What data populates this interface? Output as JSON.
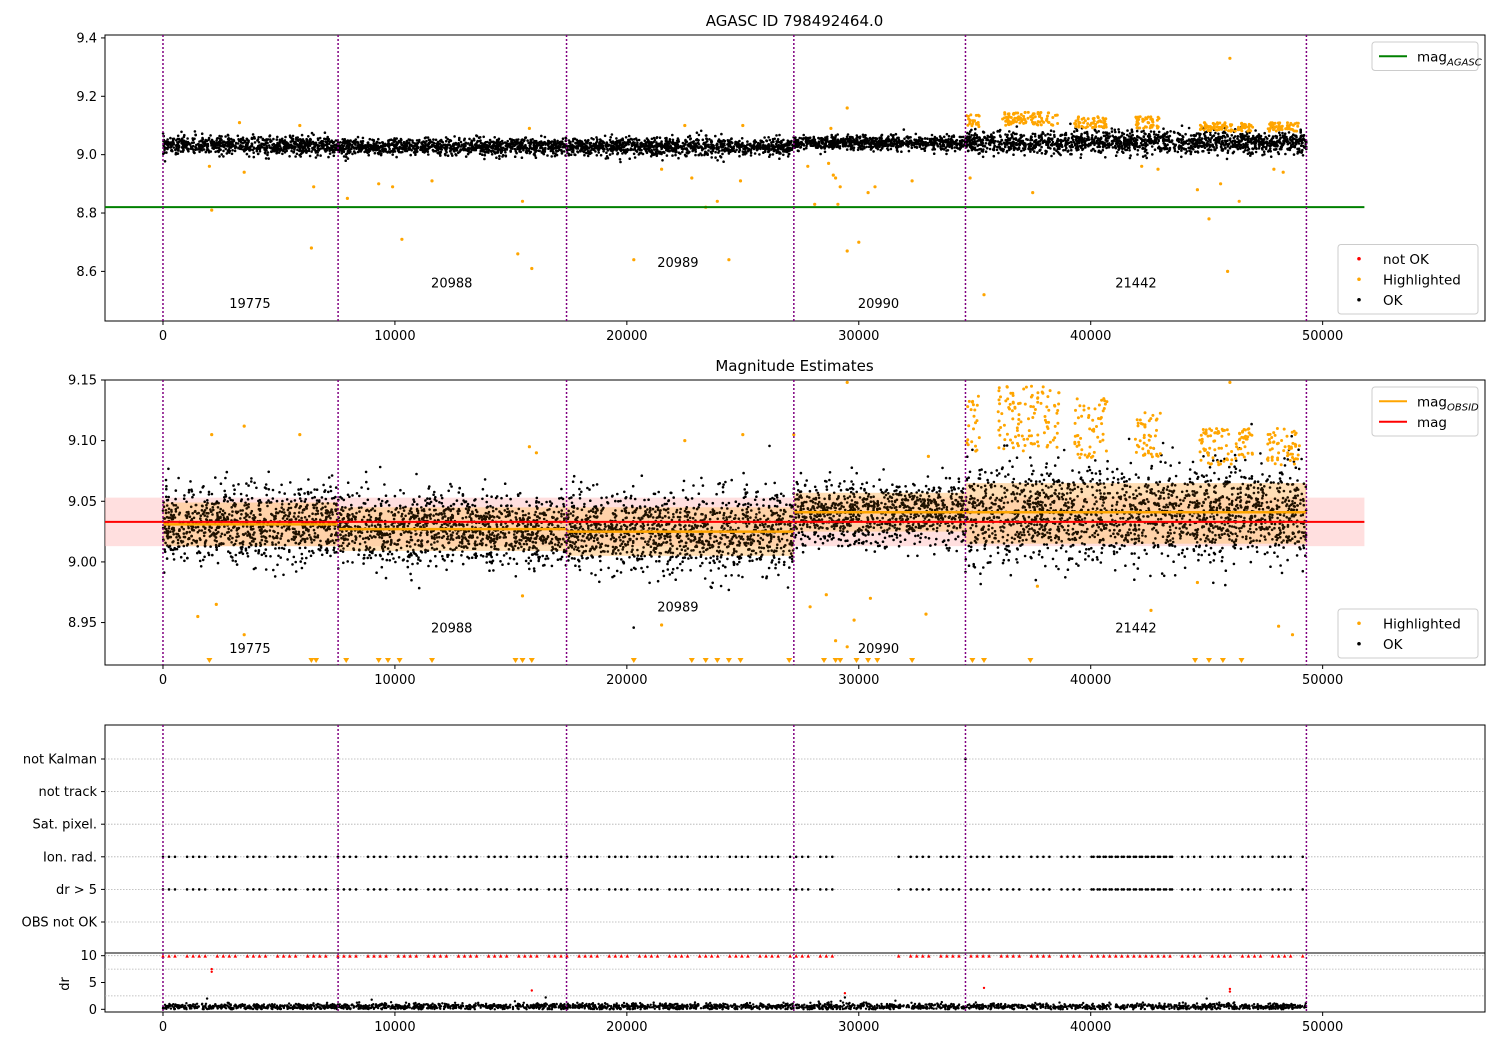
{
  "figure": {
    "title": "AGASC ID 798492464.0",
    "colors": {
      "ok": "#000000",
      "highlighted": "#ffa500",
      "not_ok": "#ff0000",
      "agasc_line": "#008000",
      "mag_line": "#ff0000",
      "obsid_line": "#ffa500",
      "boundary": "#800080",
      "band": "#ffc0c0",
      "grid": "#b0b0b0"
    }
  },
  "chart_data": [
    {
      "id": "top",
      "type": "scatter",
      "title": "",
      "xlabel": "",
      "ylabel": "",
      "xlim": [
        -2500,
        57000
      ],
      "ylim": [
        8.43,
        9.41
      ],
      "x_ticks": [
        0,
        10000,
        20000,
        30000,
        40000,
        50000
      ],
      "y_ticks": [
        8.6,
        8.8,
        9.0,
        9.2,
        9.4
      ],
      "x_tick_labels": [
        "0",
        "10000",
        "20000",
        "30000",
        "40000",
        "50000"
      ],
      "y_tick_labels": [
        "8.6",
        "8.8",
        "9.0",
        "9.2",
        "9.4"
      ],
      "obs_boundaries": [
        0,
        7550,
        17400,
        27200,
        34600,
        49300
      ],
      "obsid_labels": [
        {
          "text": "19775",
          "x": 3750,
          "y": 8.475
        },
        {
          "text": "20988",
          "x": 12450,
          "y": 8.545
        },
        {
          "text": "20989",
          "x": 22200,
          "y": 8.615
        },
        {
          "text": "20990",
          "x": 30850,
          "y": 8.475
        },
        {
          "text": "21442",
          "x": 41950,
          "y": 8.545
        }
      ],
      "segments": [
        {
          "x0": 0,
          "x1": 7550,
          "center": 9.031,
          "spread": 0.028
        },
        {
          "x0": 7550,
          "x1": 17400,
          "center": 9.027,
          "spread": 0.026
        },
        {
          "x0": 17400,
          "x1": 27200,
          "center": 9.027,
          "spread": 0.028
        },
        {
          "x0": 27200,
          "x1": 34600,
          "center": 9.04,
          "spread": 0.022
        },
        {
          "x0": 34600,
          "x1": 49300,
          "center": 9.042,
          "spread": 0.035
        }
      ],
      "mag_agasc": 8.82,
      "mag_line_xrange": [
        -2500,
        51800
      ],
      "highlighted_outliers": [
        [
          2000,
          8.96
        ],
        [
          3500,
          8.94
        ],
        [
          6400,
          8.68
        ],
        [
          6500,
          8.89
        ],
        [
          7950,
          8.85
        ],
        [
          9300,
          8.9
        ],
        [
          9900,
          8.89
        ],
        [
          10300,
          8.71
        ],
        [
          11600,
          8.91
        ],
        [
          15300,
          8.66
        ],
        [
          15500,
          8.84
        ],
        [
          15900,
          8.61
        ],
        [
          20300,
          8.64
        ],
        [
          21500,
          8.95
        ],
        [
          22800,
          8.92
        ],
        [
          23400,
          8.82
        ],
        [
          23900,
          8.84
        ],
        [
          24400,
          8.64
        ],
        [
          24900,
          8.91
        ],
        [
          27800,
          8.96
        ],
        [
          28100,
          8.83
        ],
        [
          28700,
          8.97
        ],
        [
          28900,
          8.93
        ],
        [
          29000,
          8.92
        ],
        [
          29100,
          8.83
        ],
        [
          29200,
          8.89
        ],
        [
          29500,
          8.67
        ],
        [
          30000,
          8.7
        ],
        [
          30400,
          8.87
        ],
        [
          30700,
          8.89
        ],
        [
          32300,
          8.91
        ],
        [
          34800,
          8.92
        ],
        [
          35400,
          8.52
        ],
        [
          37500,
          8.87
        ],
        [
          42200,
          8.96
        ],
        [
          42900,
          8.95
        ],
        [
          44600,
          8.88
        ],
        [
          45100,
          8.78
        ],
        [
          45600,
          8.9
        ],
        [
          45900,
          8.6
        ],
        [
          46400,
          8.84
        ],
        [
          47900,
          8.95
        ],
        [
          48300,
          8.94
        ],
        [
          2100,
          8.81
        ],
        [
          3300,
          9.11
        ],
        [
          5900,
          9.1
        ],
        [
          15800,
          9.09
        ],
        [
          22500,
          9.1
        ],
        [
          25000,
          9.1
        ],
        [
          28800,
          9.09
        ],
        [
          29500,
          9.16
        ],
        [
          46000,
          9.33
        ]
      ],
      "highlighted_clusters": [
        {
          "x0": 34650,
          "x1": 35200,
          "y0": 9.09,
          "y1": 9.14
        },
        {
          "x0": 36200,
          "x1": 38600,
          "y0": 9.1,
          "y1": 9.145
        },
        {
          "x0": 39300,
          "x1": 40700,
          "y0": 9.09,
          "y1": 9.13
        },
        {
          "x0": 41900,
          "x1": 43000,
          "y0": 9.09,
          "y1": 9.13
        },
        {
          "x0": 44700,
          "x1": 47000,
          "y0": 9.08,
          "y1": 9.11
        },
        {
          "x0": 47600,
          "x1": 49000,
          "y0": 9.08,
          "y1": 9.11
        }
      ],
      "legends": [
        {
          "position": "upper-right",
          "entries": [
            {
              "label": "mag",
              "subscript": "AGASC",
              "kind": "line",
              "color": "#008000"
            }
          ]
        },
        {
          "position": "lower-right",
          "entries": [
            {
              "label": "not OK",
              "kind": "dot",
              "color": "#ff0000"
            },
            {
              "label": "Highlighted",
              "kind": "dot",
              "color": "#ffa500"
            },
            {
              "label": "OK",
              "kind": "dot",
              "color": "#000000"
            }
          ]
        }
      ]
    },
    {
      "id": "middle",
      "type": "scatter",
      "title": "Magnitude Estimates",
      "xlabel": "",
      "ylabel": "",
      "xlim": [
        -2500,
        57000
      ],
      "ylim": [
        8.915,
        9.15
      ],
      "x_ticks": [
        0,
        10000,
        20000,
        30000,
        40000,
        50000
      ],
      "y_ticks": [
        8.95,
        9.0,
        9.05,
        9.1,
        9.15
      ],
      "x_tick_labels": [
        "0",
        "10000",
        "20000",
        "30000",
        "40000",
        "50000"
      ],
      "y_tick_labels": [
        "8.95",
        "9.00",
        "9.05",
        "9.10",
        "9.15"
      ],
      "obs_boundaries": [
        0,
        7550,
        17400,
        27200,
        34600,
        49300
      ],
      "obsid_labels": [
        {
          "text": "19775",
          "x": 3750,
          "y": 8.925
        },
        {
          "text": "20988",
          "x": 12450,
          "y": 8.942
        },
        {
          "text": "20989",
          "x": 22200,
          "y": 8.959
        },
        {
          "text": "20990",
          "x": 30850,
          "y": 8.925
        },
        {
          "text": "21442",
          "x": 41950,
          "y": 8.942
        }
      ],
      "mag": 9.033,
      "mag_band": [
        9.013,
        9.053
      ],
      "mag_line_xrange": [
        -2500,
        51800
      ],
      "mag_obsid": [
        {
          "x0": 0,
          "x1": 7550,
          "value": 9.031,
          "band": [
            9.013,
            9.049
          ]
        },
        {
          "x0": 7550,
          "x1": 17400,
          "value": 9.027,
          "band": [
            9.009,
            9.045
          ]
        },
        {
          "x0": 17400,
          "x1": 27200,
          "value": 9.025,
          "band": [
            9.005,
            9.045
          ]
        },
        {
          "x0": 27200,
          "x1": 34600,
          "value": 9.041,
          "band": [
            9.025,
            9.057
          ]
        },
        {
          "x0": 34600,
          "x1": 49300,
          "value": 9.041,
          "band": [
            9.015,
            9.065
          ]
        }
      ],
      "segments": [
        {
          "x0": 0,
          "x1": 7550,
          "center": 9.031,
          "spread": 0.028
        },
        {
          "x0": 7550,
          "x1": 17400,
          "center": 9.027,
          "spread": 0.026
        },
        {
          "x0": 17400,
          "x1": 27200,
          "center": 9.025,
          "spread": 0.03
        },
        {
          "x0": 27200,
          "x1": 34600,
          "center": 9.04,
          "spread": 0.024
        },
        {
          "x0": 34600,
          "x1": 49300,
          "center": 9.04,
          "spread": 0.035
        }
      ],
      "highlighted_outliers": [
        [
          2100,
          9.105
        ],
        [
          3500,
          9.112
        ],
        [
          5900,
          9.105
        ],
        [
          15800,
          9.095
        ],
        [
          16100,
          9.09
        ],
        [
          22500,
          9.1
        ],
        [
          25000,
          9.105
        ],
        [
          27200,
          9.105
        ],
        [
          33000,
          9.087
        ],
        [
          1500,
          8.955
        ],
        [
          2300,
          8.965
        ],
        [
          3500,
          8.94
        ],
        [
          15500,
          8.972
        ],
        [
          21500,
          8.948
        ],
        [
          27900,
          8.963
        ],
        [
          28600,
          8.973
        ],
        [
          29000,
          8.935
        ],
        [
          29500,
          8.93
        ],
        [
          29800,
          8.952
        ],
        [
          30500,
          8.97
        ],
        [
          32900,
          8.957
        ],
        [
          37700,
          8.98
        ],
        [
          42600,
          8.96
        ],
        [
          44600,
          8.983
        ],
        [
          48100,
          8.947
        ],
        [
          48700,
          8.94
        ],
        [
          29500,
          9.148
        ],
        [
          46000,
          9.148
        ]
      ],
      "clipped_markers_x": [
        2000,
        6400,
        6600,
        7900,
        9300,
        9700,
        10200,
        11600,
        15200,
        15500,
        15900,
        20300,
        22800,
        23400,
        23900,
        24400,
        24900,
        27000,
        28500,
        29000,
        29200,
        29900,
        30400,
        30800,
        32300,
        34900,
        35400,
        37400,
        44500,
        45100,
        45700,
        46500
      ],
      "highlighted_clusters": [
        {
          "x0": 34650,
          "x1": 35200,
          "y0": 9.085,
          "y1": 9.14
        },
        {
          "x0": 36000,
          "x1": 38700,
          "y0": 9.09,
          "y1": 9.145
        },
        {
          "x0": 39300,
          "x1": 40700,
          "y0": 9.085,
          "y1": 9.135
        },
        {
          "x0": 41900,
          "x1": 43000,
          "y0": 9.085,
          "y1": 9.125
        },
        {
          "x0": 44700,
          "x1": 47000,
          "y0": 9.08,
          "y1": 9.11
        },
        {
          "x0": 47600,
          "x1": 49000,
          "y0": 9.08,
          "y1": 9.11
        }
      ],
      "legends": [
        {
          "position": "upper-right",
          "entries": [
            {
              "label": "mag",
              "subscript": "OBSID",
              "kind": "line",
              "color": "#ffa500"
            },
            {
              "label": "mag",
              "kind": "line",
              "color": "#ff0000"
            }
          ]
        },
        {
          "position": "lower-right",
          "entries": [
            {
              "label": "Highlighted",
              "kind": "dot",
              "color": "#ffa500"
            },
            {
              "label": "OK",
              "kind": "dot",
              "color": "#000000"
            }
          ]
        }
      ]
    },
    {
      "id": "flags",
      "type": "scatter",
      "title": "",
      "xlabel": "",
      "ylabel": "",
      "xlim": [
        -2500,
        57000
      ],
      "y_categories": [
        "not Kalman",
        "not track",
        "Sat. pixel.",
        "Ion. rad.",
        "dr > 5",
        "OBS not OK"
      ],
      "obs_boundaries": [
        0,
        7550,
        17400,
        27200,
        34600,
        49300
      ],
      "flag_rows": {
        "not Kalman": [
          34600
        ],
        "Ion. rad.": "periodic",
        "dr > 5": "periodic"
      },
      "flag_gap": [
        28900,
        31700
      ],
      "flag_dense_range": [
        40000,
        43600
      ]
    },
    {
      "id": "dr",
      "type": "scatter",
      "title": "",
      "xlabel": "",
      "ylabel": "dr",
      "xlim": [
        -2500,
        57000
      ],
      "ylim": [
        -0.5,
        10.5
      ],
      "x_ticks": [
        0,
        10000,
        20000,
        30000,
        40000,
        50000
      ],
      "y_ticks": [
        0,
        5,
        10
      ],
      "x_tick_labels": [
        "0",
        "10000",
        "20000",
        "30000",
        "40000",
        "50000"
      ],
      "y_tick_labels": [
        "0",
        "5",
        "10"
      ],
      "obs_boundaries": [
        0,
        7550,
        17400,
        27200,
        34600,
        49300
      ],
      "dr_baseline": {
        "center": 0.5,
        "spread": 0.5
      },
      "clipped_value": 10,
      "extra_points": [
        [
          2100,
          7.5
        ],
        [
          2100,
          7.0
        ],
        [
          15900,
          3.5
        ],
        [
          29400,
          3.0
        ],
        [
          35400,
          4.0
        ],
        [
          46000,
          3.8
        ],
        [
          46000,
          3.3
        ],
        [
          1900,
          2.0
        ],
        [
          9000,
          1.8
        ],
        [
          16500,
          2.2
        ],
        [
          29400,
          2.2
        ],
        [
          45000,
          2.0
        ]
      ]
    }
  ]
}
